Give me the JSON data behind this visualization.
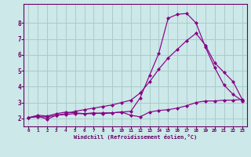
{
  "bg_color": "#cce8e8",
  "line_color": "#880088",
  "grid_color": "#aacccc",
  "axis_color": "#660066",
  "tick_color": "#660066",
  "xlabel": "Windchill (Refroidissement éolien,°C)",
  "x_ticks": [
    0,
    1,
    2,
    3,
    4,
    5,
    6,
    7,
    8,
    9,
    10,
    11,
    12,
    13,
    14,
    15,
    16,
    17,
    18,
    19,
    20,
    21,
    22,
    23
  ],
  "y_ticks": [
    2,
    3,
    4,
    5,
    6,
    7,
    8
  ],
  "xlim": [
    -0.5,
    23.5
  ],
  "ylim": [
    1.5,
    9.2
  ],
  "curve1_x": [
    0,
    1,
    2,
    3,
    4,
    5,
    6,
    7,
    8,
    9,
    10,
    11,
    12,
    13,
    14,
    15,
    16,
    17,
    18,
    19,
    20,
    21,
    22,
    23
  ],
  "curve1_y": [
    2.05,
    2.15,
    1.95,
    2.2,
    2.25,
    2.3,
    2.3,
    2.3,
    2.35,
    2.35,
    2.4,
    2.45,
    3.3,
    4.7,
    6.1,
    8.3,
    8.55,
    8.6,
    8.0,
    6.5,
    5.2,
    4.1,
    3.5,
    3.1
  ],
  "curve2_x": [
    0,
    1,
    2,
    3,
    4,
    5,
    6,
    7,
    8,
    9,
    10,
    11,
    12,
    13,
    14,
    15,
    16,
    17,
    18,
    19,
    20,
    21,
    22,
    23
  ],
  "curve2_y": [
    2.05,
    2.1,
    2.1,
    2.2,
    2.3,
    2.45,
    2.55,
    2.65,
    2.75,
    2.85,
    3.0,
    3.15,
    3.6,
    4.3,
    5.1,
    5.8,
    6.35,
    6.9,
    7.35,
    6.6,
    5.5,
    4.9,
    4.3,
    3.15
  ],
  "curve3_x": [
    0,
    1,
    2,
    3,
    4,
    5,
    6,
    7,
    8,
    9,
    10,
    11,
    12,
    13,
    14,
    15,
    16,
    17,
    18,
    19,
    20,
    21,
    22,
    23
  ],
  "curve3_y": [
    2.05,
    2.2,
    2.15,
    2.3,
    2.4,
    2.35,
    2.3,
    2.35,
    2.3,
    2.35,
    2.4,
    2.2,
    2.1,
    2.4,
    2.5,
    2.55,
    2.65,
    2.8,
    3.0,
    3.1,
    3.1,
    3.15,
    3.15,
    3.2
  ]
}
